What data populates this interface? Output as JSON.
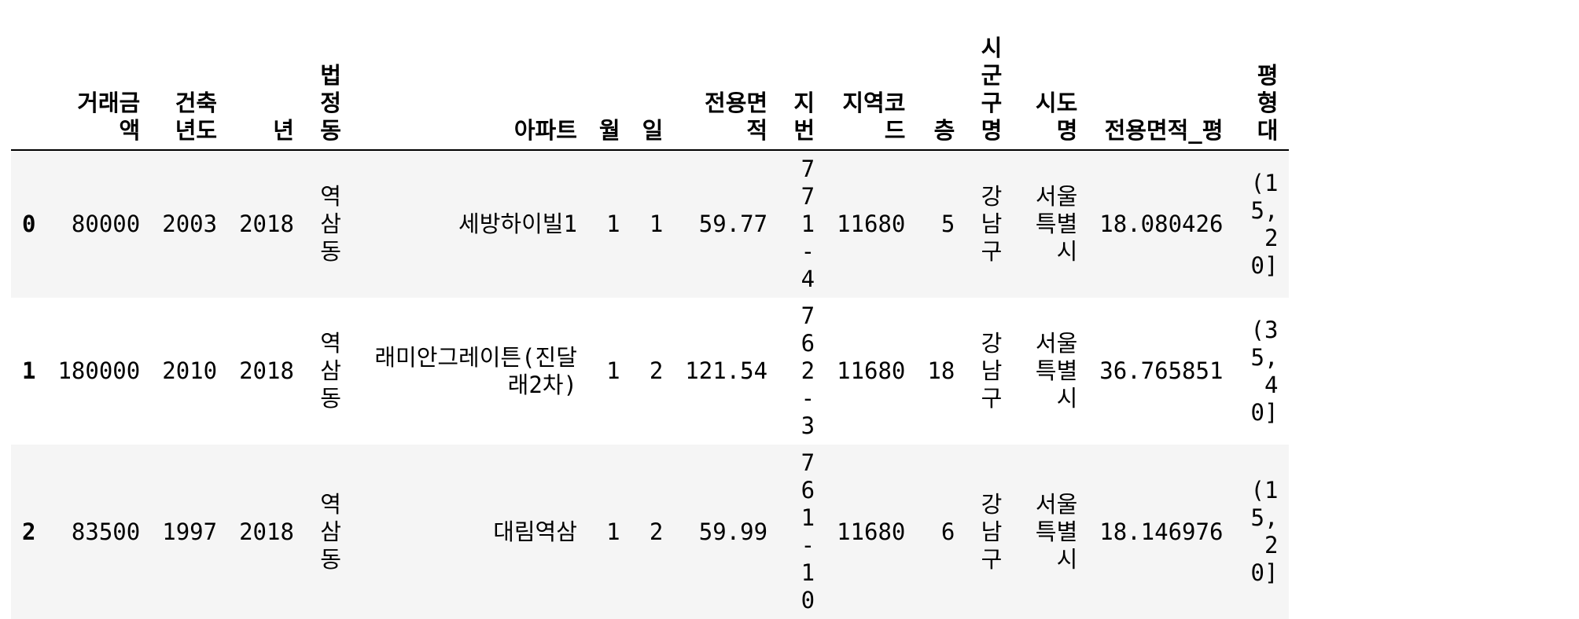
{
  "table": {
    "columns": [
      "거래금액",
      "건축년도",
      "년",
      "법정동",
      "아파트",
      "월",
      "일",
      "전용면적",
      "지번",
      "지역코드",
      "층",
      "시군구명",
      "시도명",
      "전용면적_평",
      "평형대"
    ],
    "rows": [
      {
        "index": "0",
        "values": [
          "80000",
          "2003",
          "2018",
          "역삼동",
          "세방하이빌1",
          "1",
          "1",
          "59.77",
          "771-4",
          "11680",
          "5",
          "강남구",
          "서울특별시",
          "18.080426",
          "(15, 20]"
        ]
      },
      {
        "index": "1",
        "values": [
          "180000",
          "2010",
          "2018",
          "역삼동",
          "래미안그레이튼(진달래2차)",
          "1",
          "2",
          "121.54",
          "762-3",
          "11680",
          "18",
          "강남구",
          "서울특별시",
          "36.765851",
          "(35, 40]"
        ]
      },
      {
        "index": "2",
        "values": [
          "83500",
          "1997",
          "2018",
          "역삼동",
          "대림역삼",
          "1",
          "2",
          "59.99",
          "761-10",
          "11680",
          "6",
          "강남구",
          "서울특별시",
          "18.146976",
          "(15, 20]"
        ]
      }
    ]
  }
}
